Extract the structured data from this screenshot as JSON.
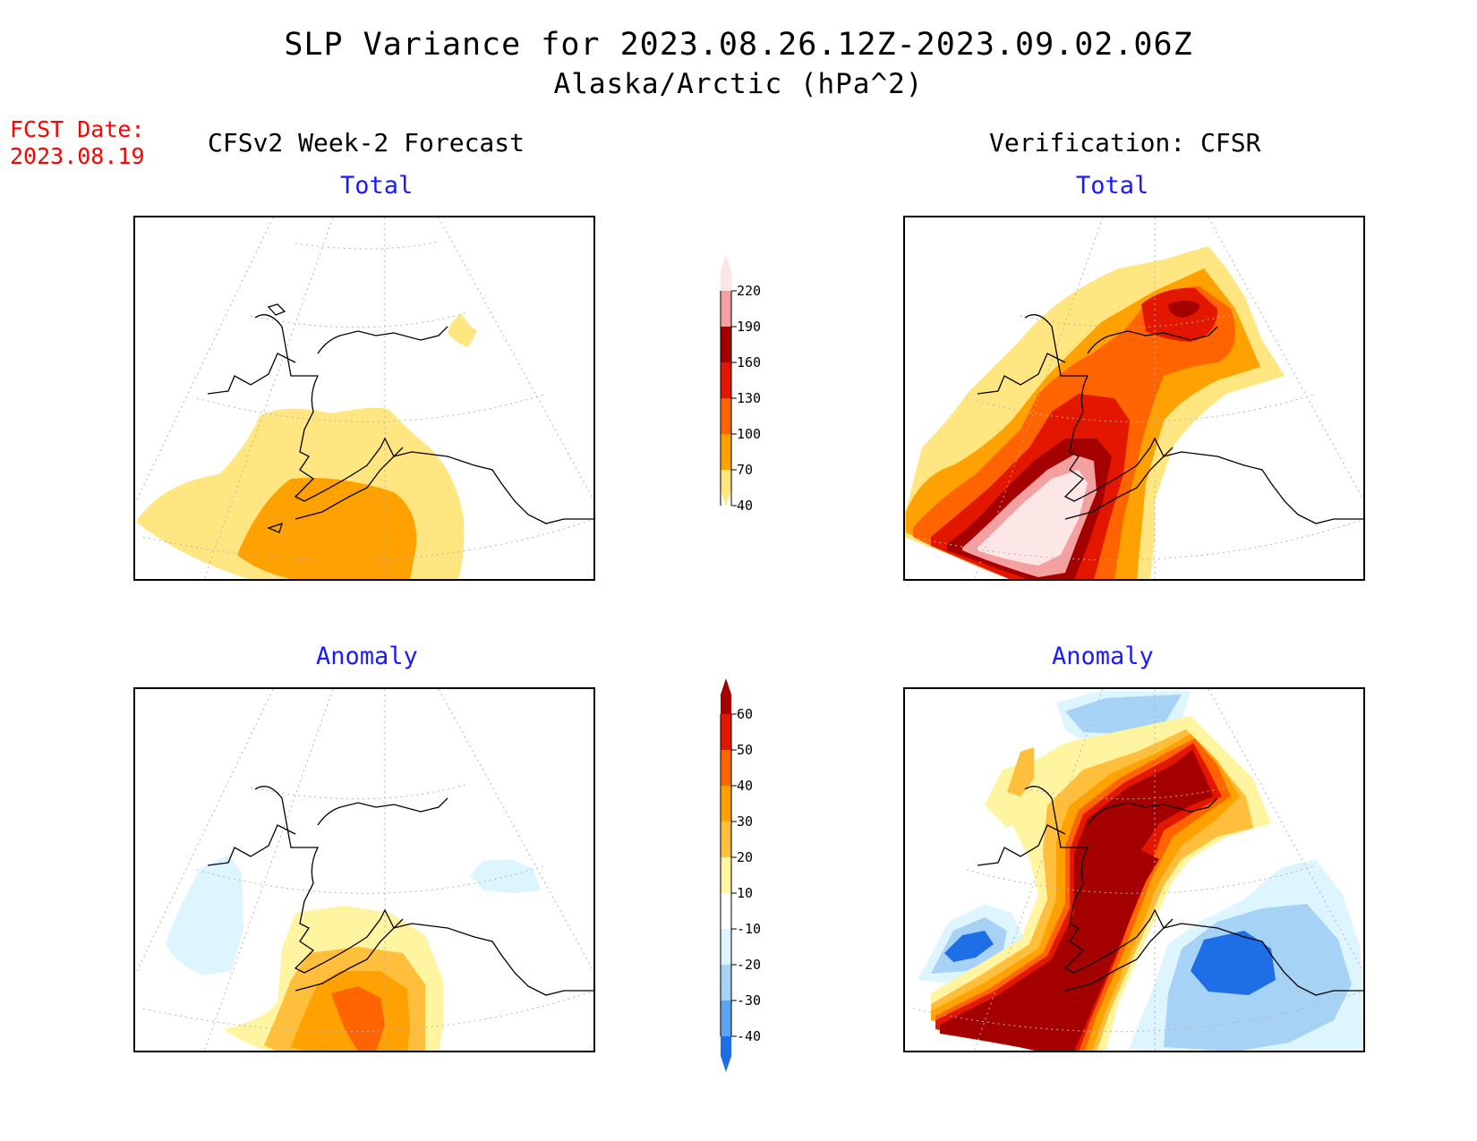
{
  "header": {
    "title": "SLP Variance for 2023.08.26.12Z-2023.09.02.06Z",
    "subtitle": "Alaska/Arctic (hPa^2)",
    "fcst_label": "FCST Date:",
    "fcst_date": "2023.08.19"
  },
  "columns": {
    "left": "CFSv2 Week-2 Forecast",
    "right": "Verification: CFSR"
  },
  "panels": {
    "fc_total": "Total",
    "vf_total": "Total",
    "fc_anom": "Anomaly",
    "vf_anom": "Anomaly"
  },
  "colorbars": {
    "total": {
      "labels": [
        "40",
        "70",
        "100",
        "130",
        "160",
        "190",
        "220"
      ],
      "colors": [
        "#ffe680",
        "#ffa100",
        "#ff6400",
        "#e31600",
        "#a50000",
        "#f4a0a0",
        "#fde6e6"
      ]
    },
    "anomaly": {
      "labels": [
        "-40",
        "-30",
        "-20",
        "-10",
        "10",
        "20",
        "30",
        "40",
        "50",
        "60"
      ],
      "colors": [
        "#1e6fe6",
        "#5aa5f0",
        "#a5d2f5",
        "#dcf5ff",
        "#ffffff",
        "#fff5a0",
        "#ffbe3c",
        "#ffa100",
        "#ff6400",
        "#e31600",
        "#a50000"
      ]
    }
  },
  "colors": {
    "title_text": "#000000",
    "panel_title": "#1a1aff",
    "fcst_text": "#ff0000"
  }
}
